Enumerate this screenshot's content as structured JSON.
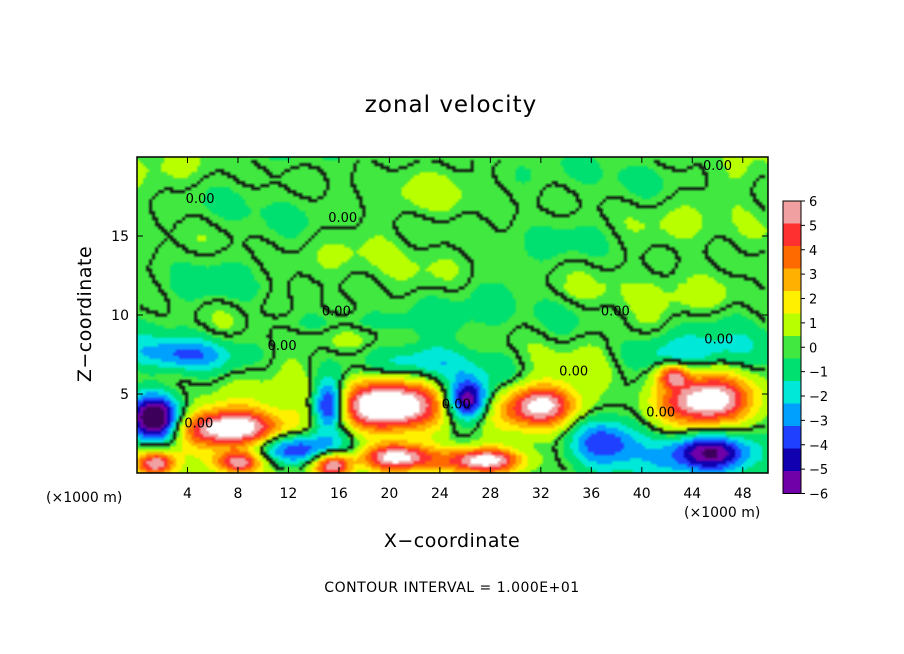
{
  "chart_data": {
    "type": "heatmap",
    "title": "zonal velocity",
    "xlabel": "X−coordinate",
    "ylabel": "Z−coordinate",
    "x_unit_label": "(×1000 m)",
    "x_unit_label_right": "(×1000 m)",
    "xlim": [
      0,
      50
    ],
    "ylim": [
      0,
      20
    ],
    "x_ticks": [
      4,
      8,
      12,
      16,
      20,
      24,
      28,
      32,
      36,
      40,
      44,
      48
    ],
    "x_tick_labels": [
      "4",
      "8",
      "12",
      "16",
      "20",
      "24",
      "28",
      "32",
      "36",
      "40",
      "44",
      "48"
    ],
    "y_ticks": [
      5,
      10,
      15
    ],
    "y_tick_labels": [
      "5",
      "10",
      "15"
    ],
    "colorbar": {
      "min": -6,
      "max": 6,
      "labels": [
        "6",
        "5",
        "4",
        "3",
        "2",
        "1",
        "0",
        "−1",
        "−2",
        "−3",
        "−4",
        "−5",
        "−6"
      ],
      "colors": [
        "#f0a0a0",
        "#ff3030",
        "#ff6a00",
        "#ffb000",
        "#fff000",
        "#b8ff00",
        "#40e840",
        "#00e070",
        "#00e8d8",
        "#00a0ff",
        "#2040ff",
        "#1000b0",
        "#7000a8"
      ]
    },
    "contour_labels": [
      {
        "text": "0.00",
        "x": 46,
        "y": 19.5
      },
      {
        "text": "0.00",
        "x": 5,
        "y": 17.4
      },
      {
        "text": "0.00",
        "x": 16.3,
        "y": 16.2
      },
      {
        "text": "0.00",
        "x": 15.8,
        "y": 10.3
      },
      {
        "text": "0.00",
        "x": 11.5,
        "y": 8.1
      },
      {
        "text": "0.00",
        "x": 37.9,
        "y": 10.3
      },
      {
        "text": "0.00",
        "x": 46.1,
        "y": 8.5
      },
      {
        "text": "0.00",
        "x": 34.6,
        "y": 6.5
      },
      {
        "text": "0.00",
        "x": 25.3,
        "y": 4.4
      },
      {
        "text": "0.00",
        "x": 4.9,
        "y": 3.2
      },
      {
        "text": "0.00",
        "x": 41.5,
        "y": 3.9
      }
    ],
    "features": [
      {
        "type": "jet",
        "sign": "positive",
        "x": 20.2,
        "y": 4.3,
        "rx": 4.2,
        "ry": 1.7,
        "amp": 9
      },
      {
        "type": "jet",
        "sign": "positive",
        "x": 7.5,
        "y": 2.8,
        "rx": 4.5,
        "ry": 1.2,
        "amp": 8
      },
      {
        "type": "jet",
        "sign": "positive",
        "x": 32.0,
        "y": 4.3,
        "rx": 3.0,
        "ry": 1.3,
        "amp": 7
      },
      {
        "type": "jet",
        "sign": "positive",
        "x": 45.2,
        "y": 4.5,
        "rx": 3.7,
        "ry": 1.6,
        "amp": 9
      },
      {
        "type": "jet",
        "sign": "positive",
        "x": 20.5,
        "y": 1.0,
        "rx": 3.0,
        "ry": 0.9,
        "amp": 8
      },
      {
        "type": "jet",
        "sign": "positive",
        "x": 27.5,
        "y": 0.8,
        "rx": 3.0,
        "ry": 0.8,
        "amp": 8
      },
      {
        "type": "jet",
        "sign": "positive",
        "x": 15.5,
        "y": 0.5,
        "rx": 1.5,
        "ry": 0.8,
        "amp": 7
      },
      {
        "type": "jet",
        "sign": "positive",
        "x": 8.0,
        "y": 0.7,
        "rx": 1.8,
        "ry": 0.7,
        "amp": 6
      },
      {
        "type": "jet",
        "sign": "positive",
        "x": 1.5,
        "y": 0.6,
        "rx": 1.5,
        "ry": 0.8,
        "amp": 6
      },
      {
        "type": "jet",
        "sign": "positive",
        "x": 42.5,
        "y": 6.2,
        "rx": 1.2,
        "ry": 0.7,
        "amp": 5
      },
      {
        "type": "jet",
        "sign": "negative",
        "x": 1.5,
        "y": 3.4,
        "rx": 2.0,
        "ry": 1.5,
        "amp": 8
      },
      {
        "type": "jet",
        "sign": "negative",
        "x": 15.2,
        "y": 4.3,
        "rx": 1.3,
        "ry": 1.6,
        "amp": 7
      },
      {
        "type": "jet",
        "sign": "negative",
        "x": 26.2,
        "y": 4.6,
        "rx": 1.6,
        "ry": 1.3,
        "amp": 7
      },
      {
        "type": "jet",
        "sign": "negative",
        "x": 12.5,
        "y": 1.5,
        "rx": 3.5,
        "ry": 1.0,
        "amp": 5
      },
      {
        "type": "jet",
        "sign": "negative",
        "x": 45.5,
        "y": 1.3,
        "rx": 3.5,
        "ry": 1.2,
        "amp": 7
      },
      {
        "type": "jet",
        "sign": "negative",
        "x": 37.0,
        "y": 2.0,
        "rx": 3.0,
        "ry": 1.5,
        "amp": 5
      },
      {
        "type": "jet",
        "sign": "negative",
        "x": 3.5,
        "y": 7.5,
        "rx": 4.0,
        "ry": 1.0,
        "amp": 3
      },
      {
        "type": "jet",
        "sign": "negative",
        "x": 23.0,
        "y": 7.0,
        "rx": 4.0,
        "ry": 1.2,
        "amp": 2.5
      },
      {
        "type": "jet",
        "sign": "negative",
        "x": 43.0,
        "y": 7.5,
        "rx": 5.0,
        "ry": 1.2,
        "amp": 2.5
      },
      {
        "type": "jet",
        "sign": "negative",
        "x": 17.0,
        "y": 9.5,
        "rx": 6.0,
        "ry": 0.8,
        "amp": 1.5
      }
    ]
  },
  "footer": {
    "contour_interval": "CONTOUR INTERVAL = 1.000E+01"
  }
}
